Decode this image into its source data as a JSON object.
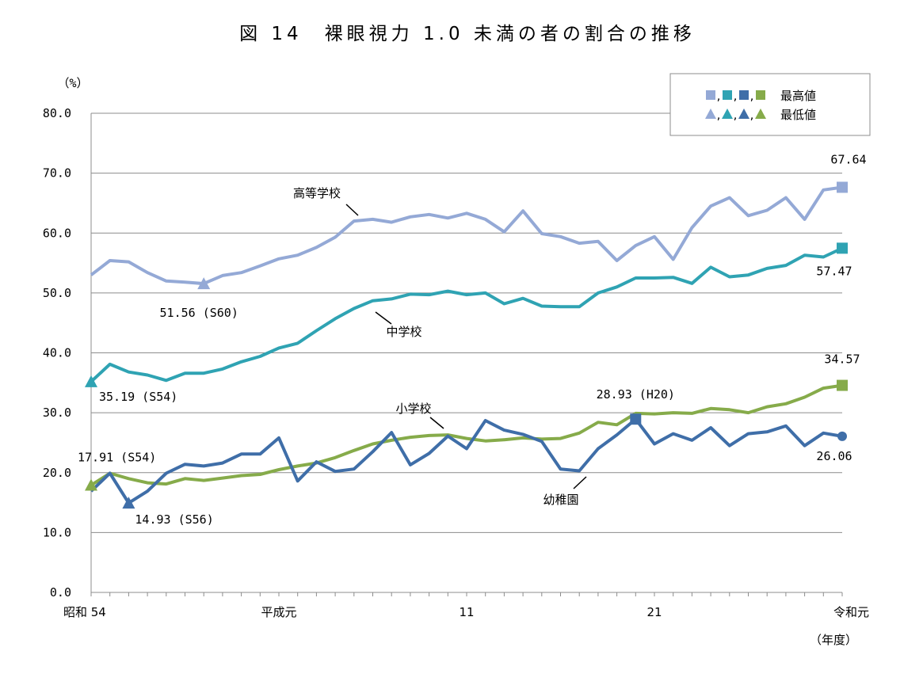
{
  "chart_data": {
    "type": "line",
    "title": "図 14　裸眼視力 1.0 未満の者の割合の推移",
    "y_unit": "（%）",
    "x_unit": "（年度）",
    "ylim": [
      0,
      80
    ],
    "yticks": [
      "0.0",
      "10.0",
      "20.0",
      "30.0",
      "40.0",
      "50.0",
      "60.0",
      "70.0",
      "80.0"
    ],
    "grid": true,
    "x": [
      "S54",
      "S55",
      "S56",
      "S57",
      "S58",
      "S59",
      "S60",
      "S61",
      "S62",
      "S63",
      "H1",
      "H2",
      "H3",
      "H4",
      "H5",
      "H6",
      "H7",
      "H8",
      "H9",
      "H10",
      "H11",
      "H12",
      "H13",
      "H14",
      "H15",
      "H16",
      "H17",
      "H18",
      "H19",
      "H20",
      "H21",
      "H22",
      "H23",
      "H24",
      "H25",
      "H26",
      "H27",
      "H28",
      "H29",
      "H30",
      "R1"
    ],
    "xtick_labels": [
      {
        "at": "S54",
        "label": "昭和 54"
      },
      {
        "at": "H1",
        "label": "平成元"
      },
      {
        "at": "H11",
        "label": "11"
      },
      {
        "at": "H21",
        "label": "21"
      },
      {
        "at": "R1",
        "label": "令和元"
      }
    ],
    "legend": {
      "placement": "top-right",
      "entries": [
        {
          "marker": "square",
          "separators": ",",
          "label": "最高値"
        },
        {
          "marker": "triangle",
          "separators": ",",
          "label": "最低値"
        }
      ]
    },
    "series": [
      {
        "name": "高等学校",
        "color": "#94a9d6",
        "values": [
          53.0,
          55.4,
          55.2,
          53.4,
          52.0,
          51.8,
          51.56,
          52.9,
          53.4,
          54.5,
          55.7,
          56.3,
          57.6,
          59.3,
          62.0,
          62.3,
          61.8,
          62.7,
          63.1,
          62.5,
          63.3,
          62.3,
          60.2,
          63.7,
          59.9,
          59.4,
          58.3,
          58.6,
          55.4,
          57.9,
          59.4,
          55.6,
          60.9,
          64.5,
          65.9,
          62.9,
          63.8,
          65.9,
          62.3,
          67.2,
          67.64
        ]
      },
      {
        "name": "中学校",
        "color": "#2fa3b3",
        "values": [
          35.19,
          38.1,
          36.8,
          36.3,
          35.4,
          36.6,
          36.6,
          37.3,
          38.5,
          39.4,
          40.8,
          41.6,
          43.7,
          45.7,
          47.4,
          48.7,
          49.0,
          49.8,
          49.7,
          50.3,
          49.7,
          50.0,
          48.2,
          49.1,
          47.8,
          47.7,
          47.7,
          50.0,
          51.0,
          52.5,
          52.5,
          52.6,
          51.6,
          54.3,
          52.7,
          53.0,
          54.1,
          54.6,
          56.3,
          56.0,
          57.47
        ]
      },
      {
        "name": "小学校",
        "color": "#3f6ea8",
        "values": [
          16.9,
          19.9,
          14.93,
          16.9,
          19.9,
          21.4,
          21.1,
          21.6,
          23.1,
          23.1,
          25.8,
          18.6,
          21.8,
          20.2,
          20.6,
          23.5,
          26.7,
          21.3,
          23.2,
          26.1,
          24.0,
          28.7,
          27.1,
          26.4,
          25.2,
          20.6,
          20.3,
          24.0,
          26.3,
          28.93,
          24.8,
          26.5,
          25.4,
          27.5,
          24.5,
          26.5,
          26.8,
          27.8,
          24.5,
          26.6,
          26.06
        ]
      },
      {
        "name": "幼稚園",
        "color": "#86ab4a",
        "values": [
          17.91,
          19.9,
          19.0,
          18.3,
          18.1,
          19.0,
          18.7,
          19.1,
          19.5,
          19.7,
          20.5,
          21.1,
          21.6,
          22.5,
          23.7,
          24.8,
          25.4,
          25.9,
          26.2,
          26.3,
          25.7,
          25.3,
          25.5,
          25.8,
          25.6,
          25.7,
          26.6,
          28.4,
          28.0,
          29.9,
          29.8,
          30.0,
          29.9,
          30.7,
          30.5,
          30.0,
          31.0,
          31.5,
          32.6,
          34.1,
          34.57
        ]
      }
    ],
    "annotations": [
      {
        "series": "高等学校",
        "at": "S60",
        "text": "51.56 (S60)",
        "marker": "triangle"
      },
      {
        "series": "高等学校",
        "at": "R1",
        "text": "67.64",
        "marker": "square"
      },
      {
        "series": "中学校",
        "at": "S54",
        "text": "35.19 (S54)",
        "marker": "triangle"
      },
      {
        "series": "中学校",
        "at": "R1",
        "text": "57.47",
        "marker": "square"
      },
      {
        "series": "小学校",
        "at": "S56",
        "text": "14.93 (S56)",
        "marker": "triangle"
      },
      {
        "series": "小学校",
        "at": "H20",
        "text": "28.93 (H20)",
        "marker": "square"
      },
      {
        "series": "小学校",
        "at": "R1",
        "text": "26.06",
        "marker": "circle"
      },
      {
        "series": "幼稚園",
        "at": "S54",
        "text": "17.91 (S54)",
        "marker": "triangle"
      },
      {
        "series": "幼稚園",
        "at": "R1",
        "text": "34.57",
        "marker": "square"
      }
    ]
  }
}
